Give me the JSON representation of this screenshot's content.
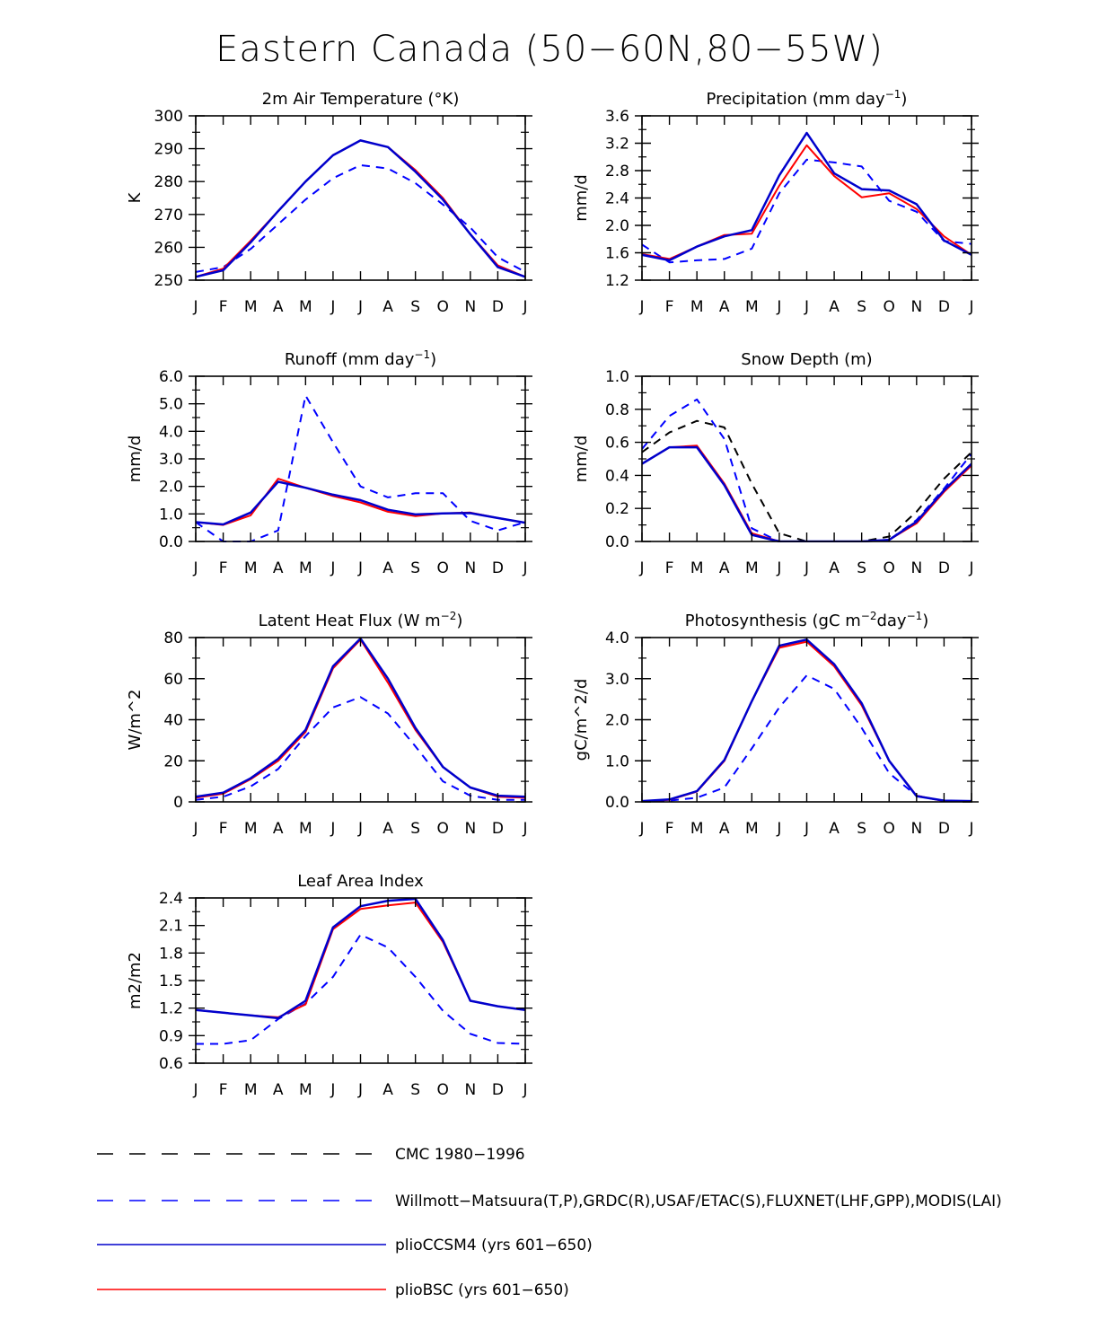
{
  "title": "Eastern Canada (50−60N,80−55W)",
  "colors": {
    "obs": "#0000ff",
    "cmc": "#000000",
    "ccsm": "#0000cc",
    "bsc": "#ff0000"
  },
  "chart_data": [
    {
      "type": "line",
      "title": "2m Air Temperature (°K)",
      "ylabel": "K",
      "xlabel": "",
      "categories": [
        "J",
        "F",
        "M",
        "A",
        "M",
        "J",
        "J",
        "A",
        "S",
        "O",
        "N",
        "D",
        "J"
      ],
      "ylim": [
        250,
        300
      ],
      "yticks": [
        "250",
        "260",
        "270",
        "280",
        "290",
        "300"
      ],
      "yticks_values": [
        250,
        260,
        270,
        280,
        290,
        300
      ],
      "series": [
        {
          "name": "Willmott-Matsuura",
          "style": "obs",
          "values": [
            252.5,
            254,
            259.5,
            267,
            274.5,
            281,
            285,
            284,
            279.5,
            273,
            266,
            257,
            252.5
          ]
        },
        {
          "name": "plioBSC",
          "style": "bsc",
          "values": [
            251,
            253.5,
            262,
            271,
            280,
            288,
            292.5,
            290.5,
            283.5,
            275,
            264,
            254.5,
            251
          ]
        },
        {
          "name": "plioCCSM4",
          "style": "ccsm",
          "values": [
            251,
            253,
            261.5,
            271,
            280,
            288,
            292.5,
            290.5,
            283,
            274.5,
            264,
            254,
            251
          ]
        }
      ]
    },
    {
      "type": "line",
      "title": "Precipitation (mm day",
      "title_sup": "−1",
      "title_end": ")",
      "ylabel": "mm/d",
      "xlabel": "",
      "categories": [
        "J",
        "F",
        "M",
        "A",
        "M",
        "J",
        "J",
        "A",
        "S",
        "O",
        "N",
        "D",
        "J"
      ],
      "ylim": [
        1.2,
        3.6
      ],
      "yticks": [
        "1.2",
        "1.6",
        "2.0",
        "2.4",
        "2.8",
        "3.2",
        "3.6"
      ],
      "yticks_values": [
        1.2,
        1.6,
        2.0,
        2.4,
        2.8,
        3.2,
        3.6
      ],
      "series": [
        {
          "name": "Willmott-Matsuura",
          "style": "obs",
          "values": [
            1.72,
            1.46,
            1.49,
            1.51,
            1.66,
            2.47,
            2.96,
            2.92,
            2.86,
            2.36,
            2.2,
            1.77,
            1.73
          ]
        },
        {
          "name": "plioBSC",
          "style": "bsc",
          "values": [
            1.58,
            1.51,
            1.69,
            1.86,
            1.88,
            2.58,
            3.17,
            2.72,
            2.41,
            2.47,
            2.24,
            1.84,
            1.57
          ]
        },
        {
          "name": "plioCCSM4",
          "style": "ccsm",
          "values": [
            1.57,
            1.49,
            1.69,
            1.84,
            1.93,
            2.73,
            3.35,
            2.76,
            2.53,
            2.51,
            2.31,
            1.78,
            1.57
          ]
        }
      ]
    },
    {
      "type": "line",
      "title": "Runoff (mm day",
      "title_sup": "−1",
      "title_end": ")",
      "ylabel": "mm/d",
      "xlabel": "",
      "categories": [
        "J",
        "F",
        "M",
        "A",
        "M",
        "J",
        "J",
        "A",
        "S",
        "O",
        "N",
        "D",
        "J"
      ],
      "ylim": [
        0,
        6
      ],
      "yticks": [
        "0.0",
        "1.0",
        "2.0",
        "3.0",
        "4.0",
        "5.0",
        "6.0"
      ],
      "yticks_values": [
        0,
        1,
        2,
        3,
        4,
        5,
        6
      ],
      "series": [
        {
          "name": "Willmott-Matsuura",
          "style": "obs",
          "values": [
            0.7,
            0.0,
            0.0,
            0.4,
            5.3,
            3.6,
            2.0,
            1.6,
            1.75,
            1.75,
            0.75,
            0.4,
            0.7
          ]
        },
        {
          "name": "plioBSC",
          "style": "bsc",
          "values": [
            0.7,
            0.6,
            0.95,
            2.28,
            1.95,
            1.65,
            1.42,
            1.08,
            0.92,
            1.02,
            1.05,
            0.85,
            0.68
          ]
        },
        {
          "name": "plioCCSM4",
          "style": "ccsm",
          "values": [
            0.7,
            0.62,
            1.05,
            2.17,
            1.95,
            1.7,
            1.5,
            1.15,
            0.98,
            1.02,
            1.03,
            0.85,
            0.68
          ]
        }
      ]
    },
    {
      "type": "line",
      "title": "Snow Depth (m)",
      "ylabel": "mm/d",
      "xlabel": "",
      "categories": [
        "J",
        "F",
        "M",
        "A",
        "M",
        "J",
        "J",
        "A",
        "S",
        "O",
        "N",
        "D",
        "J"
      ],
      "ylim": [
        0,
        1
      ],
      "yticks": [
        "0.0",
        "0.2",
        "0.4",
        "0.6",
        "0.8",
        "1.0"
      ],
      "yticks_values": [
        0,
        0.2,
        0.4,
        0.6,
        0.8,
        1.0
      ],
      "series": [
        {
          "name": "Willmott-Matsuura",
          "style": "obs",
          "values": [
            0.56,
            0.76,
            0.86,
            0.62,
            0.08,
            0.0,
            0.0,
            0.0,
            0.0,
            0.01,
            0.13,
            0.32,
            0.53
          ]
        },
        {
          "name": "CMC 1980-1996",
          "style": "cmc",
          "values": [
            0.54,
            0.66,
            0.73,
            0.69,
            0.35,
            0.05,
            0.0,
            0.0,
            0.0,
            0.03,
            0.18,
            0.38,
            0.54
          ]
        },
        {
          "name": "plioBSC",
          "style": "bsc",
          "values": [
            0.47,
            0.57,
            0.58,
            0.35,
            0.05,
            0.0,
            0.0,
            0.0,
            0.0,
            0.01,
            0.11,
            0.3,
            0.46
          ]
        },
        {
          "name": "plioCCSM4",
          "style": "ccsm",
          "values": [
            0.47,
            0.57,
            0.57,
            0.34,
            0.04,
            0.0,
            0.0,
            0.0,
            0.0,
            0.01,
            0.12,
            0.31,
            0.47
          ]
        }
      ]
    },
    {
      "type": "line",
      "title": "Latent Heat Flux (W m",
      "title_sup": "−2",
      "title_end": ")",
      "ylabel": "W/m^2",
      "xlabel": "",
      "categories": [
        "J",
        "F",
        "M",
        "A",
        "M",
        "J",
        "J",
        "A",
        "S",
        "O",
        "N",
        "D",
        "J"
      ],
      "ylim": [
        0,
        80
      ],
      "yticks": [
        "0",
        "20",
        "40",
        "60",
        "80"
      ],
      "yticks_values": [
        0,
        20,
        40,
        60,
        80
      ],
      "series": [
        {
          "name": "Willmott-Matsuura",
          "style": "obs",
          "values": [
            1,
            2.5,
            7.5,
            16,
            32,
            46,
            51,
            43,
            27,
            10,
            3,
            1,
            1
          ]
        },
        {
          "name": "plioBSC",
          "style": "bsc",
          "values": [
            2,
            4,
            11,
            20,
            34,
            65,
            79,
            58,
            35,
            17,
            7,
            2.5,
            2
          ]
        },
        {
          "name": "plioCCSM4",
          "style": "ccsm",
          "values": [
            2.5,
            4.5,
            11.5,
            21,
            35,
            66,
            79.5,
            60,
            36,
            17,
            7,
            3,
            2.5
          ]
        }
      ]
    },
    {
      "type": "line",
      "title": "Photosynthesis (gC m",
      "title_sup": "−2",
      "title_mid": "day",
      "title_sup2": "−1",
      "title_end": ")",
      "ylabel": "gC/m^2/d",
      "xlabel": "",
      "categories": [
        "J",
        "F",
        "M",
        "A",
        "M",
        "J",
        "J",
        "A",
        "S",
        "O",
        "N",
        "D",
        "J"
      ],
      "ylim": [
        0,
        4
      ],
      "yticks": [
        "0.0",
        "1.0",
        "2.0",
        "3.0",
        "4.0"
      ],
      "yticks_values": [
        0,
        1,
        2,
        3,
        4
      ],
      "series": [
        {
          "name": "Willmott-Matsuura",
          "style": "obs",
          "values": [
            0.02,
            0.03,
            0.1,
            0.35,
            1.3,
            2.3,
            3.08,
            2.75,
            1.8,
            0.7,
            0.15,
            0.02,
            0.02
          ]
        },
        {
          "name": "plioBSC",
          "style": "bsc",
          "values": [
            0.02,
            0.05,
            0.25,
            1.0,
            2.45,
            3.75,
            3.9,
            3.3,
            2.35,
            1.0,
            0.15,
            0.02,
            0.02
          ]
        },
        {
          "name": "plioCCSM4",
          "style": "ccsm",
          "values": [
            0.02,
            0.06,
            0.26,
            1.02,
            2.45,
            3.8,
            3.95,
            3.35,
            2.4,
            1.0,
            0.14,
            0.03,
            0.02
          ]
        }
      ]
    },
    {
      "type": "line",
      "title": "Leaf Area Index",
      "ylabel": "m2/m2",
      "xlabel": "",
      "categories": [
        "J",
        "F",
        "M",
        "A",
        "M",
        "J",
        "J",
        "A",
        "S",
        "O",
        "N",
        "D",
        "J"
      ],
      "ylim": [
        0.6,
        2.4
      ],
      "yticks": [
        "0.6",
        "0.9",
        "1.2",
        "1.5",
        "1.8",
        "2.1",
        "2.4"
      ],
      "yticks_values": [
        0.6,
        0.9,
        1.2,
        1.5,
        1.8,
        2.1,
        2.4
      ],
      "series": [
        {
          "name": "Willmott-Matsuura",
          "style": "obs",
          "values": [
            0.81,
            0.81,
            0.85,
            1.08,
            1.25,
            1.54,
            2.0,
            1.86,
            1.54,
            1.17,
            0.92,
            0.82,
            0.81
          ]
        },
        {
          "name": "plioBSC",
          "style": "bsc",
          "values": [
            1.18,
            1.15,
            1.12,
            1.1,
            1.24,
            2.06,
            2.28,
            2.32,
            2.35,
            1.92,
            1.28,
            1.22,
            1.18
          ]
        },
        {
          "name": "plioCCSM4",
          "style": "ccsm",
          "values": [
            1.18,
            1.15,
            1.12,
            1.09,
            1.28,
            2.08,
            2.31,
            2.37,
            2.39,
            1.94,
            1.28,
            1.22,
            1.18
          ]
        }
      ]
    }
  ],
  "legend": [
    {
      "label": "CMC 1980−1996",
      "style": "cmc"
    },
    {
      "label": "Willmott−Matsuura(T,P),GRDC(R),USAF/ETAC(S),FLUXNET(LHF,GPP),MODIS(LAI)",
      "style": "obs"
    },
    {
      "label": "plioCCSM4 (yrs 601−650)",
      "style": "ccsm"
    },
    {
      "label": "plioBSC (yrs 601−650)",
      "style": "bsc"
    }
  ]
}
